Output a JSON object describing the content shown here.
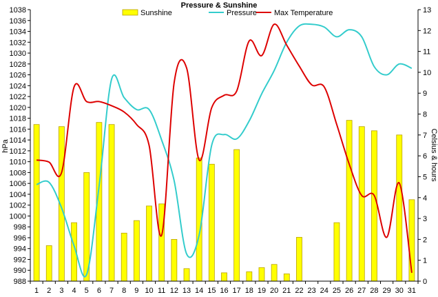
{
  "chart_data": {
    "type": "bar+line",
    "title": "Pressure & Sunshine",
    "ylabel_left": "hPa",
    "ylabel_right": "Celsius & hours",
    "categories": [
      "1",
      "2",
      "3",
      "4",
      "5",
      "6",
      "7",
      "8",
      "9",
      "10",
      "11",
      "12",
      "13",
      "14",
      "15",
      "16",
      "17",
      "18",
      "19",
      "20",
      "21",
      "22",
      "23",
      "24",
      "25",
      "26",
      "27",
      "28",
      "29",
      "30",
      "31"
    ],
    "left_axis": {
      "min": 988,
      "max": 1038,
      "step": 2
    },
    "right_axis": {
      "min": 0,
      "max": 13,
      "step": 1
    },
    "grid": false,
    "legend_position": "top",
    "series": [
      {
        "name": "Sunshine",
        "type": "bar",
        "axis": "right",
        "color": "#ffff00",
        "stroke": "#b8a000",
        "values": [
          7.5,
          1.7,
          7.4,
          2.8,
          5.2,
          7.6,
          7.5,
          2.3,
          2.9,
          3.6,
          3.7,
          2.0,
          0.6,
          5.9,
          5.6,
          0.4,
          6.3,
          0.45,
          0.65,
          0.8,
          0.35,
          2.1,
          0,
          0,
          2.8,
          7.7,
          7.4,
          7.2,
          0,
          7.0,
          3.9
        ]
      },
      {
        "name": "Pressure",
        "type": "line",
        "axis": "left",
        "color": "#33cccc",
        "values": [
          1005.8,
          1006.2,
          1001.5,
          994.5,
          989.2,
          1005.5,
          1025.2,
          1021.8,
          1019.6,
          1019.6,
          1014.0,
          1006.5,
          993.0,
          996.5,
          1013.0,
          1015.0,
          1014.2,
          1017.5,
          1022.5,
          1026.8,
          1032.0,
          1035.0,
          1035.3,
          1034.8,
          1033.0,
          1034.3,
          1033.0,
          1027.5,
          1026.0,
          1028.0,
          1027.2
        ]
      },
      {
        "name": "Max Temperature",
        "type": "line",
        "axis": "right",
        "color": "#dd0000",
        "values": [
          5.8,
          5.7,
          5.2,
          9.3,
          8.6,
          8.6,
          8.4,
          8.1,
          7.5,
          6.5,
          2.2,
          9.5,
          10.2,
          5.8,
          8.3,
          8.9,
          9.1,
          11.5,
          10.8,
          12.3,
          11.3,
          10.3,
          9.4,
          9.3,
          7.5,
          5.6,
          4.1,
          4.1,
          2.1,
          4.7,
          0.4
        ]
      }
    ]
  }
}
